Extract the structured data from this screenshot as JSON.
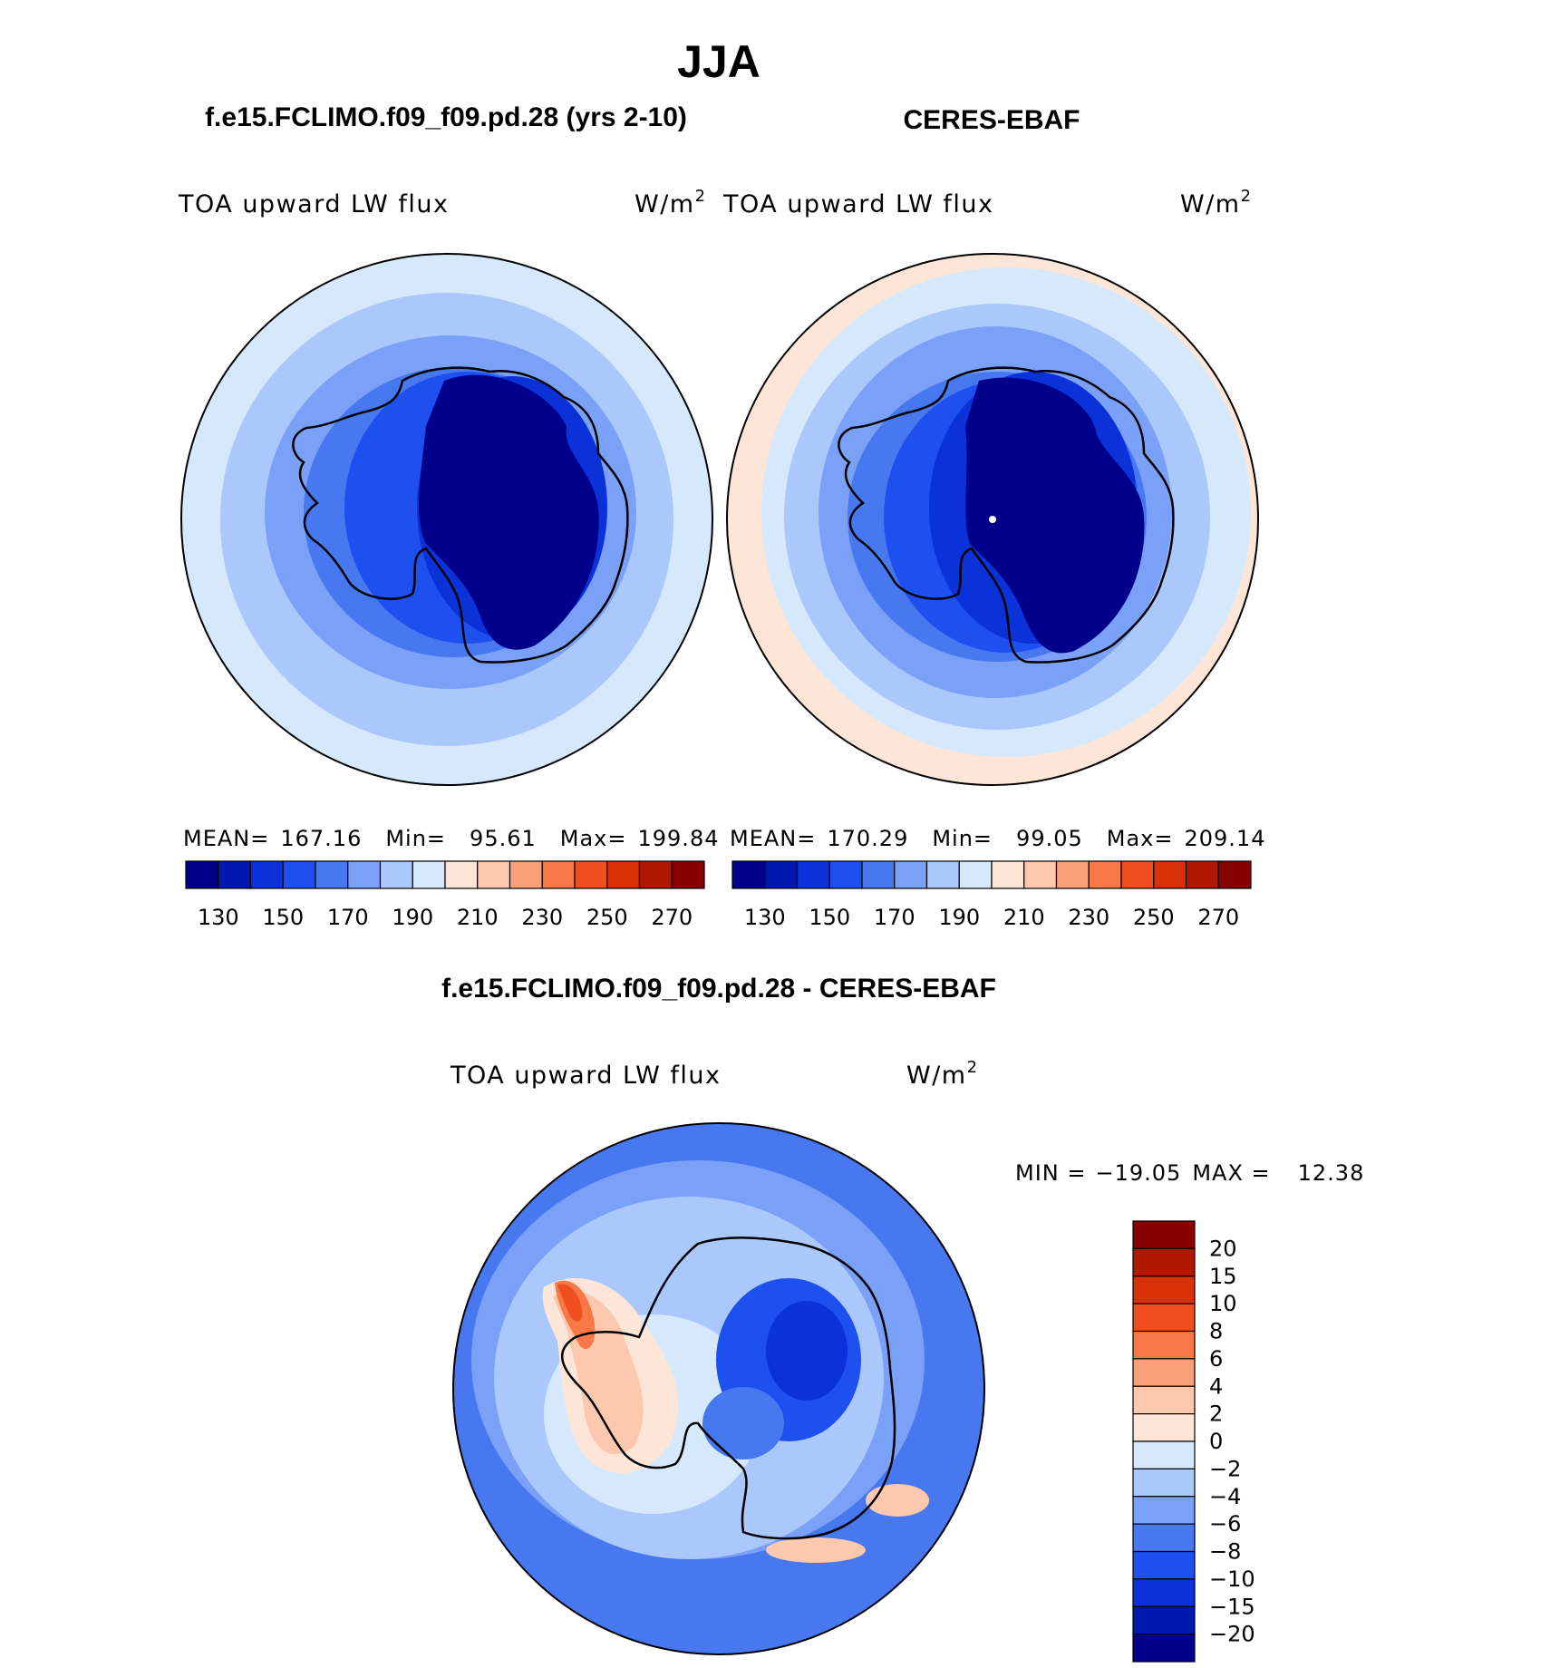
{
  "figure": {
    "title": "JJA",
    "panel1_title": "f.e15.FCLIMO.f09_f09.pd.28 (yrs 2-10)",
    "panel2_title": "CERES-EBAF",
    "panel3_title": "f.e15.FCLIMO.f09_f09.pd.28 - CERES-EBAF"
  },
  "chart_data": [
    {
      "type": "heatmap",
      "projection": "south-polar-stereographic",
      "variable_label": "TOA upward LW flux",
      "units_base": "W/m",
      "units_exp": "2",
      "stats": {
        "mean_label": "MEAN=",
        "mean": "167.16",
        "min_label": "Min=",
        "min": "95.61",
        "max_label": "Max=",
        "max": "199.84"
      },
      "levels": [
        130,
        140,
        150,
        160,
        170,
        180,
        190,
        200,
        210,
        220,
        230,
        240,
        250,
        260,
        270
      ],
      "tick_labels": [
        "130",
        "150",
        "170",
        "190",
        "210",
        "230",
        "250",
        "270"
      ],
      "colors": [
        "#00008b",
        "#0018b0",
        "#0a32d8",
        "#1e50f0",
        "#4878f0",
        "#7aa0f8",
        "#aac8fc",
        "#d6e8fc",
        "#fde6d8",
        "#fcc8ae",
        "#f8a078",
        "#f87848",
        "#f05020",
        "#d83008",
        "#b01800",
        "#880000"
      ],
      "contour_values": [
        96,
        110,
        130,
        160,
        180,
        190,
        200
      ]
    },
    {
      "type": "heatmap",
      "projection": "south-polar-stereographic",
      "variable_label": "TOA upward LW flux",
      "units_base": "W/m",
      "units_exp": "2",
      "stats": {
        "mean_label": "MEAN=",
        "mean": "170.29",
        "min_label": "Min=",
        "min": "99.05",
        "max_label": "Max=",
        "max": "209.14"
      },
      "levels": [
        130,
        140,
        150,
        160,
        170,
        180,
        190,
        200,
        210,
        220,
        230,
        240,
        250,
        260,
        270
      ],
      "tick_labels": [
        "130",
        "150",
        "170",
        "190",
        "210",
        "230",
        "250",
        "270"
      ],
      "colors": [
        "#00008b",
        "#0018b0",
        "#0a32d8",
        "#1e50f0",
        "#4878f0",
        "#7aa0f8",
        "#aac8fc",
        "#d6e8fc",
        "#fde6d8",
        "#fcc8ae",
        "#f8a078",
        "#f87848",
        "#f05020",
        "#d83008",
        "#b01800",
        "#880000"
      ],
      "contour_values": [
        99,
        115,
        135,
        160,
        180,
        190,
        200,
        209
      ]
    },
    {
      "type": "heatmap",
      "projection": "south-polar-stereographic",
      "variable_label": "TOA upward LW flux",
      "units_base": "W/m",
      "units_exp": "2",
      "stats": {
        "min_label": "MIN =",
        "min": "−19.05",
        "max_label": "MAX =",
        "max": "12.38"
      },
      "levels": [
        -20,
        -15,
        -10,
        -8,
        -6,
        -4,
        -2,
        0,
        2,
        4,
        6,
        8,
        10,
        15,
        20
      ],
      "tick_labels": [
        "20",
        "15",
        "10",
        "8",
        "6",
        "4",
        "2",
        "0",
        "−2",
        "−4",
        "−6",
        "−8",
        "−10",
        "−15",
        "−20"
      ],
      "colors": [
        "#00008b",
        "#0018b0",
        "#0a32d8",
        "#1e50f0",
        "#4878f0",
        "#7aa0f8",
        "#aac8fc",
        "#d6e8fc",
        "#fde6d8",
        "#fcc8ae",
        "#f8a078",
        "#f87848",
        "#f05020",
        "#d83008",
        "#b01800",
        "#880000"
      ]
    }
  ]
}
